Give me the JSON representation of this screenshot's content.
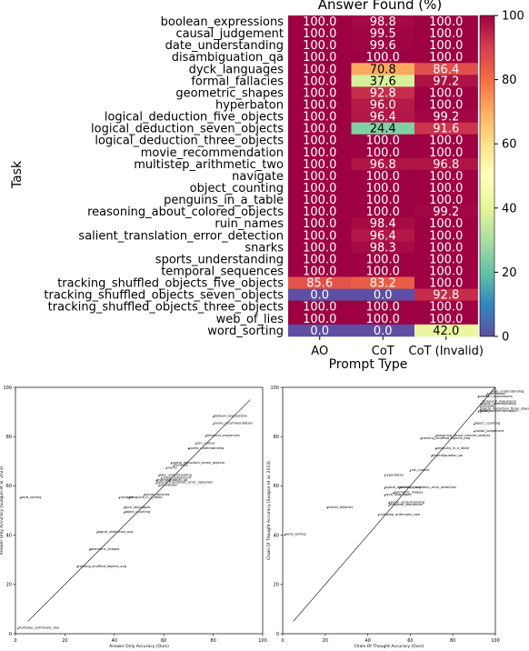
{
  "chart_data": [
    {
      "type": "heatmap",
      "title": "Answer Found (%)",
      "xlabel": "Prompt Type",
      "ylabel": "Task",
      "columns": [
        "AO",
        "CoT",
        "CoT (Invalid)"
      ],
      "rows": [
        "boolean_expressions",
        "causal_judgement",
        "date_understanding",
        "disambiguation_qa",
        "dyck_languages",
        "formal_fallacies",
        "geometric_shapes",
        "hyperbaton",
        "logical_deduction_five_objects",
        "logical_deduction_seven_objects",
        "logical_deduction_three_objects",
        "movie_recommendation",
        "multistep_arithmetic_two",
        "navigate",
        "object_counting",
        "penguins_in_a_table",
        "reasoning_about_colored_objects",
        "ruin_names",
        "salient_translation_error_detection",
        "snarks",
        "sports_understanding",
        "temporal_sequences",
        "tracking_shuffled_objects_five_objects",
        "tracking_shuffled_objects_seven_objects",
        "tracking_shuffled_objects_three_objects",
        "web_of_lies",
        "word_sorting"
      ],
      "values": [
        [
          100.0,
          98.8,
          100.0
        ],
        [
          100.0,
          99.5,
          100.0
        ],
        [
          100.0,
          99.6,
          100.0
        ],
        [
          100.0,
          100.0,
          100.0
        ],
        [
          100.0,
          70.8,
          86.4
        ],
        [
          100.0,
          37.6,
          97.2
        ],
        [
          100.0,
          92.8,
          100.0
        ],
        [
          100.0,
          96.0,
          100.0
        ],
        [
          100.0,
          96.4,
          99.2
        ],
        [
          100.0,
          24.4,
          91.6
        ],
        [
          100.0,
          100.0,
          100.0
        ],
        [
          100.0,
          100.0,
          100.0
        ],
        [
          100.0,
          96.8,
          96.8
        ],
        [
          100.0,
          100.0,
          100.0
        ],
        [
          100.0,
          100.0,
          100.0
        ],
        [
          100.0,
          100.0,
          100.0
        ],
        [
          100.0,
          100.0,
          99.2
        ],
        [
          100.0,
          98.4,
          100.0
        ],
        [
          100.0,
          96.4,
          100.0
        ],
        [
          100.0,
          98.3,
          100.0
        ],
        [
          100.0,
          100.0,
          100.0
        ],
        [
          100.0,
          100.0,
          100.0
        ],
        [
          85.6,
          83.2,
          100.0
        ],
        [
          0.0,
          0.0,
          92.8
        ],
        [
          100.0,
          100.0,
          100.0
        ],
        [
          100.0,
          100.0,
          100.0
        ],
        [
          0.0,
          0.0,
          42.0
        ]
      ],
      "colorbar": {
        "range": [
          0,
          100
        ],
        "ticks": [
          0,
          20,
          40,
          60,
          80,
          100
        ],
        "colormap": "Spectral_r"
      }
    },
    {
      "type": "scatter",
      "xlabel": "Answer Only Accuracy (Ours)",
      "ylabel": "Answer Only Accuracy (Suzgun et al. 2023)",
      "xlim": [
        0,
        100
      ],
      "ylim": [
        0,
        100
      ],
      "ticks": [
        0,
        20,
        40,
        60,
        80,
        100
      ],
      "reference_line": [
        [
          5,
          5
        ],
        [
          95,
          95
        ]
      ],
      "points": [
        {
          "label": "boolean_expressions",
          "x": 80,
          "y": 88
        },
        {
          "label": "movie_recommendation",
          "x": 80,
          "y": 85
        },
        {
          "label": "temporal_sequences",
          "x": 77,
          "y": 80
        },
        {
          "label": "ruin_names",
          "x": 73,
          "y": 77
        },
        {
          "label": "sports_understanding",
          "x": 70,
          "y": 75
        },
        {
          "label": "logical_deduction_seven_objects",
          "x": 63,
          "y": 69
        },
        {
          "label": "navigate",
          "x": 64,
          "y": 68
        },
        {
          "label": "snarks",
          "x": 61,
          "y": 67
        },
        {
          "label": "date_understanding",
          "x": 58,
          "y": 64
        },
        {
          "label": "causal_judgement",
          "x": 59,
          "y": 63
        },
        {
          "label": "disambiguation_qa",
          "x": 57,
          "y": 62
        },
        {
          "label": "salient_translation_error_detection",
          "x": 57,
          "y": 61
        },
        {
          "label": "hyperbaton",
          "x": 58,
          "y": 60
        },
        {
          "label": "formal_fallacies",
          "x": 52,
          "y": 56
        },
        {
          "label": "navigate",
          "x": 42,
          "y": 55
        },
        {
          "label": "penguins_in_a_table",
          "x": 46,
          "y": 55
        },
        {
          "label": "word_sorting",
          "x": 2,
          "y": 55
        },
        {
          "label": "dyck_languages",
          "x": 44,
          "y": 51
        },
        {
          "label": "object_counting",
          "x": 44,
          "y": 49
        },
        {
          "label": "logical_deduction_avg",
          "x": 33,
          "y": 41
        },
        {
          "label": "geometric_shapes",
          "x": 30,
          "y": 34
        },
        {
          "label": "tracking_shuffled_objects_avg",
          "x": 25,
          "y": 27
        },
        {
          "label": "multistep_arithmetic_two",
          "x": 1,
          "y": 2
        }
      ]
    },
    {
      "type": "scatter",
      "xlabel": "Chain Of Thought Accuracy (Ours)",
      "ylabel": "Chain Of Thought Accuracy (Suzgun et al. 2023)",
      "xlim": [
        0,
        100
      ],
      "ylim": [
        0,
        100
      ],
      "ticks": [
        0,
        20,
        40,
        60,
        80,
        100
      ],
      "reference_line": [
        [
          5,
          5
        ],
        [
          100,
          100
        ]
      ],
      "points": [
        {
          "label": "date_understanding",
          "x": 98,
          "y": 98
        },
        {
          "label": "hyperbaton",
          "x": 96,
          "y": 97
        },
        {
          "label": "boolean_expressions",
          "x": 92,
          "y": 96
        },
        {
          "label": "temporal_sequences",
          "x": 94,
          "y": 94
        },
        {
          "label": "sports_understanding",
          "x": 93,
          "y": 93
        },
        {
          "label": "navigate",
          "x": 93,
          "y": 92
        },
        {
          "label": "logical_deduction_three_objects",
          "x": 93,
          "y": 91
        },
        {
          "label": "snarks",
          "x": 93,
          "y": 90
        },
        {
          "label": "movie_recommendation",
          "x": 92,
          "y": 90
        },
        {
          "label": "object_counting",
          "x": 90,
          "y": 85
        },
        {
          "label": "causal_judgement",
          "x": 90,
          "y": 82
        },
        {
          "label": "reasoning_about_colored_objects",
          "x": 72,
          "y": 80
        },
        {
          "label": "tracking_shuffled_objects_avg",
          "x": 65,
          "y": 79
        },
        {
          "label": "penguins_in_a_table",
          "x": 72,
          "y": 75
        },
        {
          "label": "disambiguation_qa",
          "x": 70,
          "y": 72
        },
        {
          "label": "ruin_names",
          "x": 60,
          "y": 66
        },
        {
          "label": "hyperbaton",
          "x": 48,
          "y": 64
        },
        {
          "label": "logical_deduction_avg",
          "x": 48,
          "y": 59
        },
        {
          "label": "salient_translation_error_detection",
          "x": 55,
          "y": 59
        },
        {
          "label": "geometric_shapes",
          "x": 52,
          "y": 57
        },
        {
          "label": "dyck_languages",
          "x": 48,
          "y": 56
        },
        {
          "label": "sports_understanding",
          "x": 50,
          "y": 53
        },
        {
          "label": "temporal_sequences",
          "x": 50,
          "y": 52
        },
        {
          "label": "formal_fallacies",
          "x": 21,
          "y": 51
        },
        {
          "label": "multistep_arithmetic_two",
          "x": 45,
          "y": 48
        },
        {
          "label": "word_sorting",
          "x": 1,
          "y": 40
        }
      ]
    }
  ]
}
